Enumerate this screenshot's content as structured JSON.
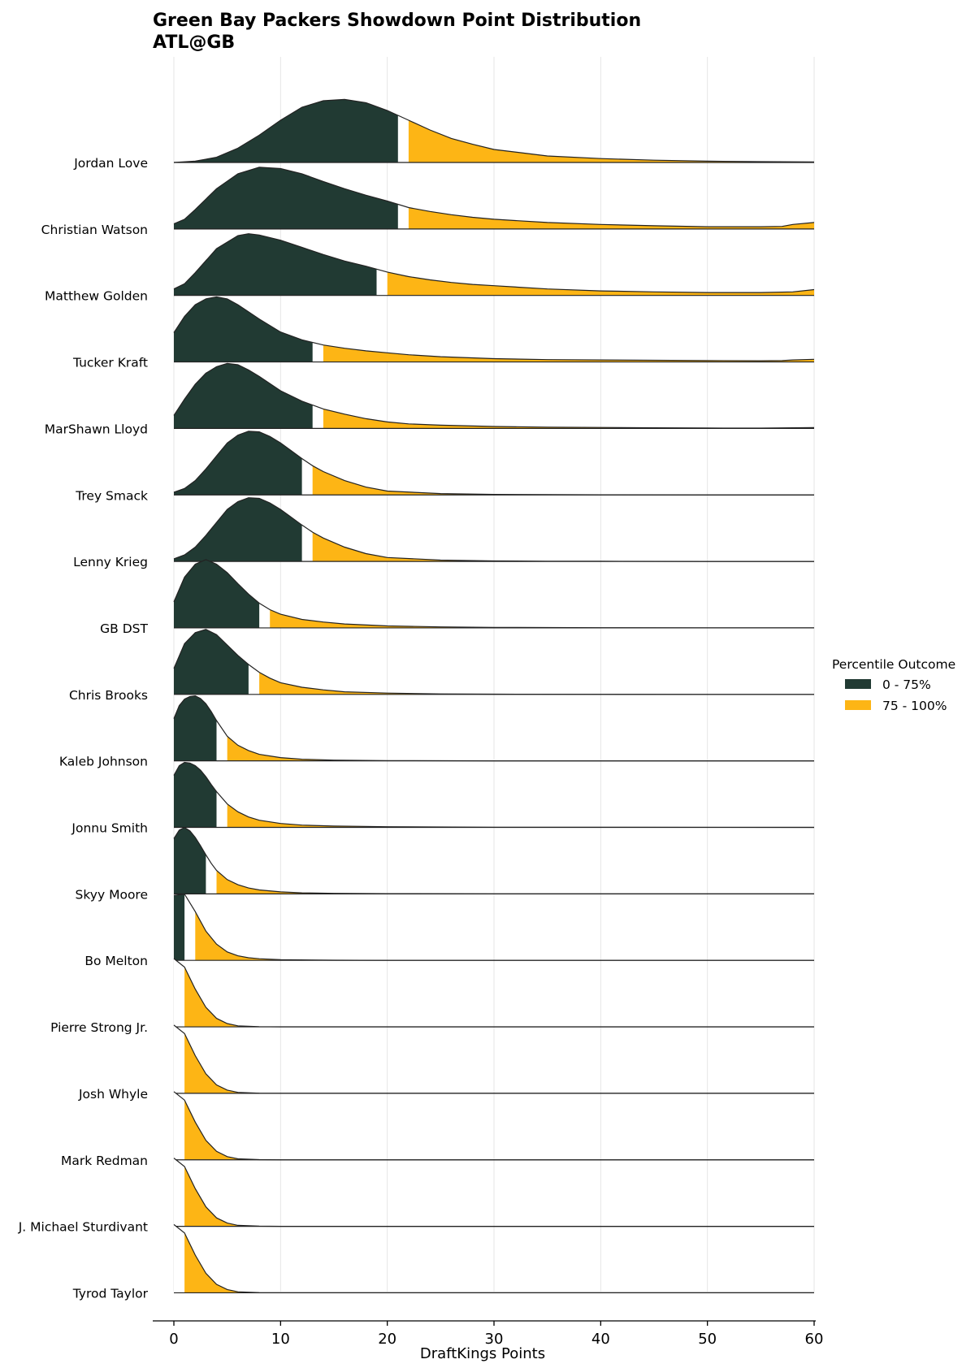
{
  "chart_data": {
    "type": "ridgeline",
    "title": "Green Bay Packers Showdown Point Distribution",
    "subtitle": "ATL@GB",
    "xlabel": "DraftKings Points",
    "xlim": [
      -2,
      60
    ],
    "xticks": [
      0,
      10,
      20,
      30,
      40,
      50,
      60
    ],
    "grid": true,
    "legend": {
      "title": "Percentile Outcome",
      "position": "right",
      "entries": [
        {
          "label": "0 - 75%",
          "color": "#213A33"
        },
        {
          "label": "75 - 100%",
          "color": "#FDB515"
        }
      ]
    },
    "colors": {
      "low": "#213A33",
      "high": "#FDB515",
      "outline": "#222222",
      "grid": "#e6e6e6"
    },
    "players": [
      {
        "name": "Jordan Love",
        "p75": 21,
        "p75_hi": 22,
        "x": [
          0,
          2,
          4,
          6,
          8,
          10,
          12,
          14,
          16,
          18,
          20,
          22,
          24,
          26,
          28,
          30,
          35,
          40,
          45,
          50,
          55,
          60
        ],
        "y": [
          0,
          0.02,
          0.08,
          0.22,
          0.42,
          0.65,
          0.85,
          0.95,
          0.97,
          0.92,
          0.8,
          0.65,
          0.5,
          0.37,
          0.28,
          0.2,
          0.1,
          0.06,
          0.035,
          0.02,
          0.012,
          0.008
        ]
      },
      {
        "name": "Christian Watson",
        "p75": 21,
        "p75_hi": 22,
        "x": [
          0,
          1,
          2,
          4,
          6,
          8,
          10,
          12,
          14,
          16,
          18,
          20,
          22,
          24,
          26,
          28,
          30,
          35,
          40,
          45,
          50,
          55,
          57,
          58,
          60
        ],
        "y": [
          0.08,
          0.15,
          0.3,
          0.62,
          0.85,
          0.95,
          0.93,
          0.85,
          0.73,
          0.62,
          0.52,
          0.43,
          0.33,
          0.27,
          0.22,
          0.18,
          0.15,
          0.1,
          0.07,
          0.05,
          0.035,
          0.035,
          0.04,
          0.07,
          0.1
        ]
      },
      {
        "name": "Matthew Golden",
        "p75": 19,
        "p75_hi": 20,
        "x": [
          0,
          1,
          2,
          4,
          6,
          7,
          8,
          10,
          12,
          14,
          16,
          18,
          20,
          22,
          24,
          26,
          28,
          30,
          35,
          40,
          45,
          50,
          55,
          58,
          60
        ],
        "y": [
          0.1,
          0.18,
          0.35,
          0.72,
          0.92,
          0.95,
          0.93,
          0.85,
          0.74,
          0.63,
          0.53,
          0.45,
          0.36,
          0.29,
          0.24,
          0.2,
          0.17,
          0.15,
          0.1,
          0.07,
          0.055,
          0.045,
          0.045,
          0.055,
          0.09
        ]
      },
      {
        "name": "Tucker Kraft",
        "p75": 13,
        "p75_hi": 14,
        "x": [
          0,
          1,
          2,
          3,
          4,
          5,
          6,
          8,
          10,
          12,
          14,
          16,
          18,
          20,
          22,
          25,
          30,
          35,
          40,
          45,
          50,
          55,
          57,
          58,
          60
        ],
        "y": [
          0.45,
          0.7,
          0.88,
          0.97,
          1.0,
          0.97,
          0.88,
          0.66,
          0.46,
          0.34,
          0.26,
          0.21,
          0.17,
          0.14,
          0.11,
          0.08,
          0.05,
          0.035,
          0.03,
          0.025,
          0.02,
          0.018,
          0.02,
          0.03,
          0.04
        ]
      },
      {
        "name": "MarShawn Lloyd",
        "p75": 13,
        "p75_hi": 14,
        "x": [
          0,
          1,
          2,
          3,
          4,
          5,
          6,
          7,
          8,
          10,
          12,
          14,
          16,
          18,
          20,
          22,
          25,
          30,
          35,
          40,
          45,
          50,
          55,
          60
        ],
        "y": [
          0.2,
          0.45,
          0.68,
          0.85,
          0.95,
          1.0,
          0.98,
          0.9,
          0.8,
          0.58,
          0.42,
          0.3,
          0.22,
          0.15,
          0.1,
          0.07,
          0.05,
          0.03,
          0.02,
          0.015,
          0.01,
          0.006,
          0.005,
          0.012
        ]
      },
      {
        "name": "Trey Smack",
        "p75": 12,
        "p75_hi": 13,
        "x": [
          0,
          1,
          2,
          3,
          4,
          5,
          6,
          7,
          8,
          9,
          10,
          11,
          12,
          13,
          14,
          16,
          18,
          20,
          25,
          30,
          35,
          40,
          50,
          60
        ],
        "y": [
          0.04,
          0.1,
          0.22,
          0.4,
          0.6,
          0.8,
          0.92,
          0.98,
          0.97,
          0.9,
          0.8,
          0.68,
          0.56,
          0.45,
          0.36,
          0.22,
          0.12,
          0.06,
          0.02,
          0.008,
          0.004,
          0.002,
          0,
          0
        ]
      },
      {
        "name": "Lenny Krieg",
        "p75": 12,
        "p75_hi": 13,
        "x": [
          0,
          1,
          2,
          3,
          4,
          5,
          6,
          7,
          8,
          9,
          10,
          11,
          12,
          13,
          14,
          16,
          18,
          20,
          25,
          30,
          35,
          40,
          50,
          60
        ],
        "y": [
          0.04,
          0.1,
          0.22,
          0.4,
          0.6,
          0.8,
          0.92,
          0.98,
          0.97,
          0.9,
          0.8,
          0.68,
          0.56,
          0.45,
          0.36,
          0.22,
          0.12,
          0.06,
          0.02,
          0.008,
          0.004,
          0.002,
          0,
          0
        ]
      },
      {
        "name": "GB DST",
        "p75": 8,
        "p75_hi": 9,
        "x": [
          0,
          1,
          2,
          3,
          4,
          5,
          6,
          7,
          8,
          9,
          10,
          12,
          14,
          16,
          20,
          25,
          30,
          40,
          50,
          60
        ],
        "y": [
          0.4,
          0.78,
          0.98,
          1.05,
          0.98,
          0.85,
          0.68,
          0.52,
          0.38,
          0.28,
          0.21,
          0.13,
          0.09,
          0.06,
          0.03,
          0.015,
          0.008,
          0.003,
          0.001,
          0
        ]
      },
      {
        "name": "Chris Brooks",
        "p75": 7,
        "p75_hi": 8,
        "x": [
          0,
          1,
          2,
          3,
          4,
          5,
          6,
          7,
          8,
          9,
          10,
          12,
          14,
          16,
          20,
          25,
          30,
          40,
          50,
          60
        ],
        "y": [
          0.4,
          0.78,
          0.95,
          1.0,
          0.92,
          0.76,
          0.6,
          0.46,
          0.34,
          0.25,
          0.18,
          0.11,
          0.07,
          0.04,
          0.02,
          0.008,
          0.004,
          0.001,
          0,
          0
        ]
      },
      {
        "name": "Kaleb Johnson",
        "p75": 4,
        "p75_hi": 5,
        "x": [
          0,
          0.5,
          1,
          1.5,
          2,
          2.5,
          3,
          3.5,
          4,
          5,
          6,
          7,
          8,
          10,
          12,
          15,
          20,
          30,
          40,
          60
        ],
        "y": [
          0.65,
          0.85,
          0.95,
          0.99,
          1.0,
          0.96,
          0.88,
          0.76,
          0.62,
          0.38,
          0.24,
          0.16,
          0.1,
          0.05,
          0.025,
          0.012,
          0.005,
          0.001,
          0,
          0
        ]
      },
      {
        "name": "Jonnu Smith",
        "p75": 4,
        "p75_hi": 5,
        "x": [
          0,
          0.5,
          1,
          1.5,
          2,
          2.5,
          3,
          3.5,
          4,
          5,
          6,
          7,
          8,
          10,
          12,
          15,
          20,
          30,
          40,
          60
        ],
        "y": [
          0.8,
          0.95,
          1.0,
          0.99,
          0.95,
          0.88,
          0.78,
          0.66,
          0.55,
          0.36,
          0.24,
          0.16,
          0.11,
          0.06,
          0.035,
          0.02,
          0.01,
          0.003,
          0.001,
          0
        ]
      },
      {
        "name": "Skyy Moore",
        "p75": 3,
        "p75_hi": 4,
        "x": [
          0,
          0.5,
          1,
          1.5,
          2,
          2.5,
          3,
          3.5,
          4,
          5,
          6,
          7,
          8,
          10,
          12,
          15,
          20,
          30,
          40,
          60
        ],
        "y": [
          0.85,
          0.98,
          1.02,
          0.97,
          0.87,
          0.74,
          0.6,
          0.47,
          0.36,
          0.22,
          0.14,
          0.09,
          0.06,
          0.03,
          0.015,
          0.008,
          0.003,
          0.001,
          0,
          0
        ]
      },
      {
        "name": "Bo Melton",
        "p75": 1,
        "p75_hi": 2,
        "x": [
          0,
          1,
          2,
          3,
          4,
          5,
          6,
          7,
          8,
          10,
          15,
          20,
          30,
          60
        ],
        "y": [
          1.0,
          1.02,
          0.75,
          0.45,
          0.25,
          0.13,
          0.07,
          0.04,
          0.025,
          0.01,
          0.002,
          0,
          0,
          0
        ]
      },
      {
        "name": "Pierre Strong Jr.",
        "p75": 0,
        "p75_hi": 1,
        "x": [
          0,
          1,
          2,
          3,
          4,
          5,
          6,
          8,
          10,
          20,
          60
        ],
        "y": [
          1.05,
          0.92,
          0.58,
          0.3,
          0.13,
          0.05,
          0.015,
          0.003,
          0,
          0,
          0
        ]
      },
      {
        "name": "Josh Whyle",
        "p75": 0,
        "p75_hi": 1,
        "x": [
          0,
          1,
          2,
          3,
          4,
          5,
          6,
          8,
          10,
          20,
          60
        ],
        "y": [
          1.05,
          0.92,
          0.58,
          0.3,
          0.13,
          0.05,
          0.015,
          0.003,
          0,
          0,
          0
        ]
      },
      {
        "name": "Mark Redman",
        "p75": 0,
        "p75_hi": 1,
        "x": [
          0,
          1,
          2,
          3,
          4,
          5,
          6,
          8,
          10,
          20,
          60
        ],
        "y": [
          1.05,
          0.92,
          0.58,
          0.3,
          0.13,
          0.05,
          0.015,
          0.003,
          0,
          0,
          0
        ]
      },
      {
        "name": "J. Michael Sturdivant",
        "p75": 0,
        "p75_hi": 1,
        "x": [
          0,
          1,
          2,
          3,
          4,
          5,
          6,
          8,
          10,
          20,
          60
        ],
        "y": [
          1.05,
          0.92,
          0.58,
          0.3,
          0.13,
          0.05,
          0.015,
          0.003,
          0,
          0,
          0
        ]
      },
      {
        "name": "Tyrod Taylor",
        "p75": 0,
        "p75_hi": 1,
        "x": [
          0,
          1,
          2,
          3,
          4,
          5,
          6,
          8,
          10,
          20,
          60
        ],
        "y": [
          1.05,
          0.92,
          0.58,
          0.3,
          0.13,
          0.05,
          0.015,
          0.003,
          0,
          0,
          0
        ]
      }
    ]
  }
}
